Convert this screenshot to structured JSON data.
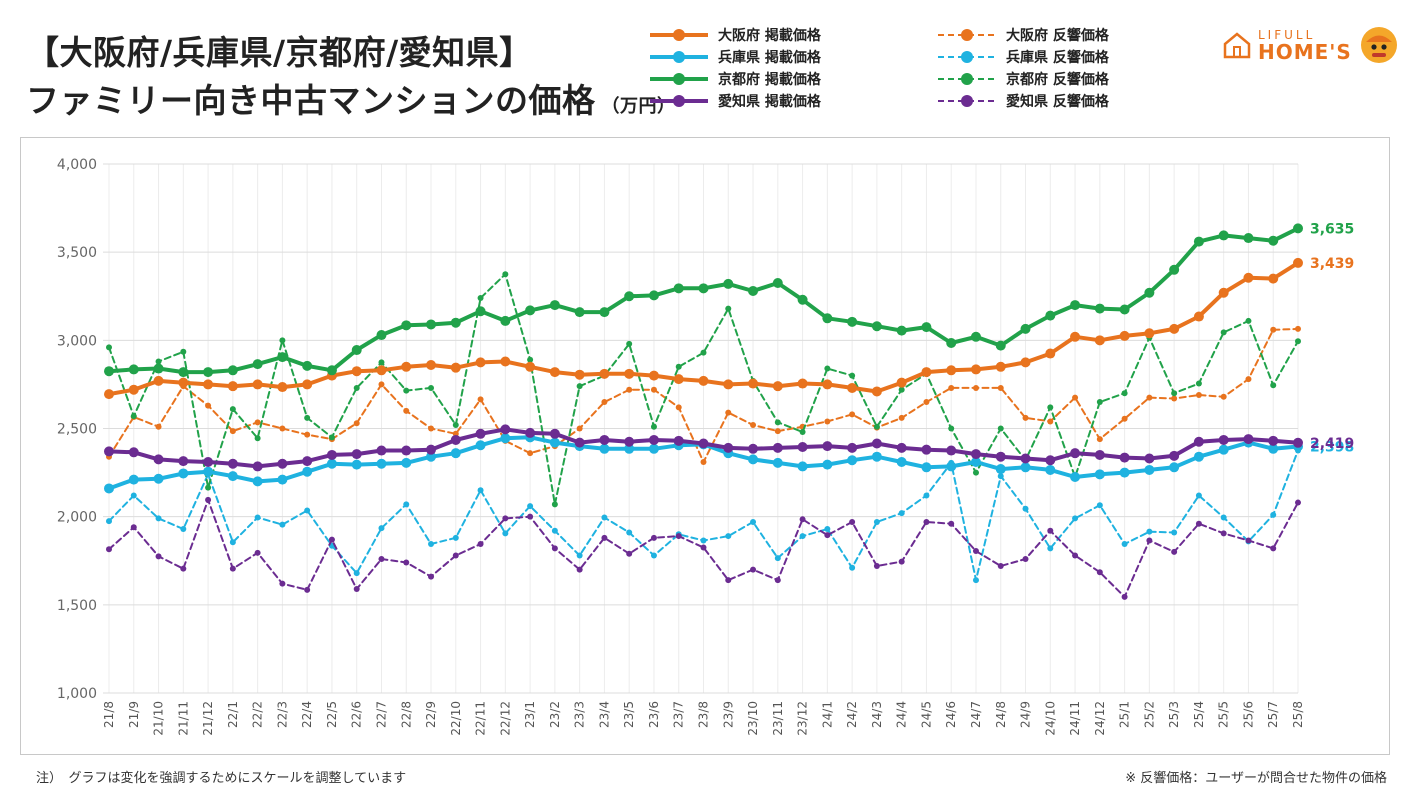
{
  "title": {
    "line1": "【大阪府/兵庫県/京都府/愛知県】",
    "line2": "ファミリー向き中古マンションの価格",
    "unit": "（万円）"
  },
  "logo": {
    "top": "LIFULL",
    "bottom": "HOME'S"
  },
  "footnote": {
    "left": "注）　グラフは変化を強調するためにスケールを調整しています",
    "right": "※ 反響価格：ユーザーが問合せた物件の価格"
  },
  "colors": {
    "osaka": "#e8731e",
    "hyogo": "#1fb2e0",
    "kyoto": "#21a24a",
    "aichi": "#6b2c91"
  },
  "chart_data": {
    "type": "line",
    "ylim": [
      1000,
      4000
    ],
    "yticks": [
      "1,000",
      "1,500",
      "2,000",
      "2,500",
      "3,000",
      "3,500",
      "4,000"
    ],
    "grid": true,
    "categories": [
      "21/8",
      "21/9",
      "21/10",
      "21/11",
      "21/12",
      "22/1",
      "22/2",
      "22/3",
      "22/4",
      "22/5",
      "22/6",
      "22/7",
      "22/8",
      "22/9",
      "22/10",
      "22/11",
      "22/12",
      "23/1",
      "23/2",
      "23/3",
      "23/4",
      "23/5",
      "23/6",
      "23/7",
      "23/8",
      "23/9",
      "23/10",
      "23/11",
      "23/12",
      "24/1",
      "24/2",
      "24/3",
      "24/4",
      "24/5",
      "24/6",
      "24/7",
      "24/8",
      "24/9",
      "24/10",
      "24/11",
      "24/12",
      "25/1",
      "25/2",
      "25/3",
      "25/4",
      "25/5",
      "25/6",
      "25/7",
      "25/8"
    ],
    "series": [
      {
        "name": "大阪府 掲載価格",
        "color": "#e8731e",
        "style": "solid",
        "values": [
          2695,
          2720,
          2770,
          2760,
          2750,
          2740,
          2750,
          2735,
          2750,
          2800,
          2825,
          2830,
          2850,
          2860,
          2845,
          2875,
          2880,
          2850,
          2820,
          2805,
          2810,
          2810,
          2800,
          2780,
          2770,
          2750,
          2755,
          2740,
          2755,
          2750,
          2730,
          2710,
          2760,
          2820,
          2830,
          2835,
          2850,
          2875,
          2925,
          3020,
          3000,
          3025,
          3040,
          3065,
          3135,
          3270,
          3355,
          3350,
          3439
        ],
        "end_label": "3,439"
      },
      {
        "name": "兵庫県 掲載価格",
        "color": "#1fb2e0",
        "style": "solid",
        "values": [
          2160,
          2210,
          2215,
          2245,
          2255,
          2230,
          2200,
          2210,
          2255,
          2300,
          2295,
          2300,
          2305,
          2340,
          2360,
          2405,
          2445,
          2450,
          2420,
          2400,
          2385,
          2385,
          2385,
          2405,
          2410,
          2360,
          2325,
          2305,
          2285,
          2295,
          2320,
          2340,
          2310,
          2280,
          2285,
          2310,
          2270,
          2280,
          2265,
          2225,
          2240,
          2250,
          2265,
          2280,
          2340,
          2380,
          2420,
          2385,
          2398
        ],
        "end_label": "2,398"
      },
      {
        "name": "京都府 掲載価格",
        "color": "#21a24a",
        "style": "solid",
        "values": [
          2825,
          2835,
          2840,
          2820,
          2820,
          2830,
          2865,
          2905,
          2855,
          2830,
          2945,
          3030,
          3085,
          3090,
          3100,
          3165,
          3110,
          3170,
          3200,
          3160,
          3160,
          3250,
          3255,
          3295,
          3295,
          3320,
          3280,
          3325,
          3230,
          3125,
          3105,
          3080,
          3055,
          3075,
          2985,
          3020,
          2970,
          3065,
          3140,
          3200,
          3180,
          3175,
          3270,
          3400,
          3560,
          3595,
          3580,
          3565,
          3635
        ],
        "end_label": "3,635"
      },
      {
        "name": "愛知県 掲載価格",
        "color": "#6b2c91",
        "style": "solid",
        "values": [
          2370,
          2365,
          2325,
          2315,
          2310,
          2300,
          2285,
          2300,
          2315,
          2350,
          2355,
          2375,
          2375,
          2380,
          2435,
          2470,
          2495,
          2475,
          2470,
          2420,
          2435,
          2425,
          2435,
          2430,
          2415,
          2390,
          2385,
          2390,
          2395,
          2400,
          2390,
          2415,
          2390,
          2380,
          2375,
          2355,
          2340,
          2330,
          2320,
          2360,
          2350,
          2335,
          2330,
          2345,
          2425,
          2435,
          2440,
          2430,
          2419
        ],
        "end_label": "2,419"
      },
      {
        "name": "大阪府 反響価格",
        "color": "#e8731e",
        "style": "dashed",
        "values": [
          2340,
          2565,
          2510,
          2740,
          2630,
          2485,
          2535,
          2500,
          2465,
          2440,
          2530,
          2750,
          2600,
          2500,
          2470,
          2665,
          2430,
          2360,
          2400,
          2500,
          2650,
          2720,
          2720,
          2620,
          2310,
          2590,
          2520,
          2485,
          2510,
          2540,
          2580,
          2505,
          2560,
          2650,
          2730,
          2730,
          2730,
          2560,
          2540,
          2675,
          2440,
          2555,
          2675,
          2670,
          2690,
          2680,
          2780,
          3060,
          3065
        ]
      },
      {
        "name": "兵庫県 反響価格",
        "color": "#1fb2e0",
        "style": "dashed",
        "values": [
          1975,
          2120,
          1990,
          1930,
          2240,
          1855,
          1995,
          1955,
          2035,
          1835,
          1680,
          1935,
          2070,
          1845,
          1880,
          2150,
          1905,
          2060,
          1920,
          1780,
          1995,
          1910,
          1780,
          1900,
          1865,
          1890,
          1970,
          1765,
          1890,
          1930,
          1710,
          1970,
          2020,
          2120,
          2305,
          1640,
          2230,
          2045,
          1820,
          1990,
          2065,
          1845,
          1915,
          1910,
          2120,
          1995,
          1860,
          2010,
          2375
        ]
      },
      {
        "name": "京都府 反響価格",
        "color": "#21a24a",
        "style": "dashed",
        "values": [
          2960,
          2570,
          2880,
          2935,
          2165,
          2610,
          2445,
          3000,
          2560,
          2450,
          2730,
          2875,
          2715,
          2730,
          2520,
          3240,
          3375,
          2890,
          2070,
          2740,
          2800,
          2980,
          2510,
          2850,
          2930,
          3180,
          2770,
          2535,
          2480,
          2840,
          2800,
          2510,
          2720,
          2810,
          2500,
          2250,
          2500,
          2320,
          2620,
          2225,
          2650,
          2700,
          3015,
          2700,
          2755,
          3045,
          3110,
          2745,
          2995
        ]
      },
      {
        "name": "愛知県 反響価格",
        "color": "#6b2c91",
        "style": "dashed",
        "values": [
          1815,
          1940,
          1775,
          1705,
          2095,
          1705,
          1795,
          1620,
          1585,
          1870,
          1590,
          1760,
          1740,
          1660,
          1780,
          1845,
          1990,
          2000,
          1820,
          1700,
          1880,
          1790,
          1880,
          1890,
          1825,
          1640,
          1700,
          1640,
          1985,
          1895,
          1970,
          1720,
          1745,
          1970,
          1960,
          1805,
          1720,
          1760,
          1920,
          1780,
          1685,
          1545,
          1865,
          1800,
          1960,
          1905,
          1865,
          1820,
          2080
        ]
      }
    ]
  }
}
